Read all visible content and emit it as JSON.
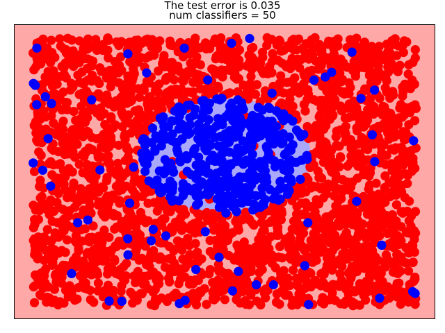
{
  "chart_data": {
    "type": "scatter",
    "title_lines": [
      "The test error is 0.035",
      "num classifiers = 50"
    ],
    "xlabel": "",
    "ylabel": "",
    "ticks_shown": false,
    "grid": false,
    "xlim": [
      -1.1,
      1.1
    ],
    "ylim": [
      -1.1,
      1.1
    ],
    "point_domain": {
      "x": [
        -1.0,
        1.0
      ],
      "y": [
        -1.0,
        1.0
      ]
    },
    "decision_region": {
      "shape": "ellipse",
      "center": [
        0.0,
        0.12
      ],
      "radii": [
        0.45,
        0.43
      ],
      "inside_class": "positive",
      "inside_color": "#a9a8fb",
      "outside_color": "#fea8a8"
    },
    "classes": [
      {
        "label": "positive (inside)",
        "color": "#0000ff",
        "approx_count": 700
      },
      {
        "label": "negative (outside)",
        "color": "#ff0000",
        "approx_count": 2300
      }
    ],
    "test_error": 0.035,
    "num_classifiers": 50,
    "point_radius_data": 0.024
  }
}
